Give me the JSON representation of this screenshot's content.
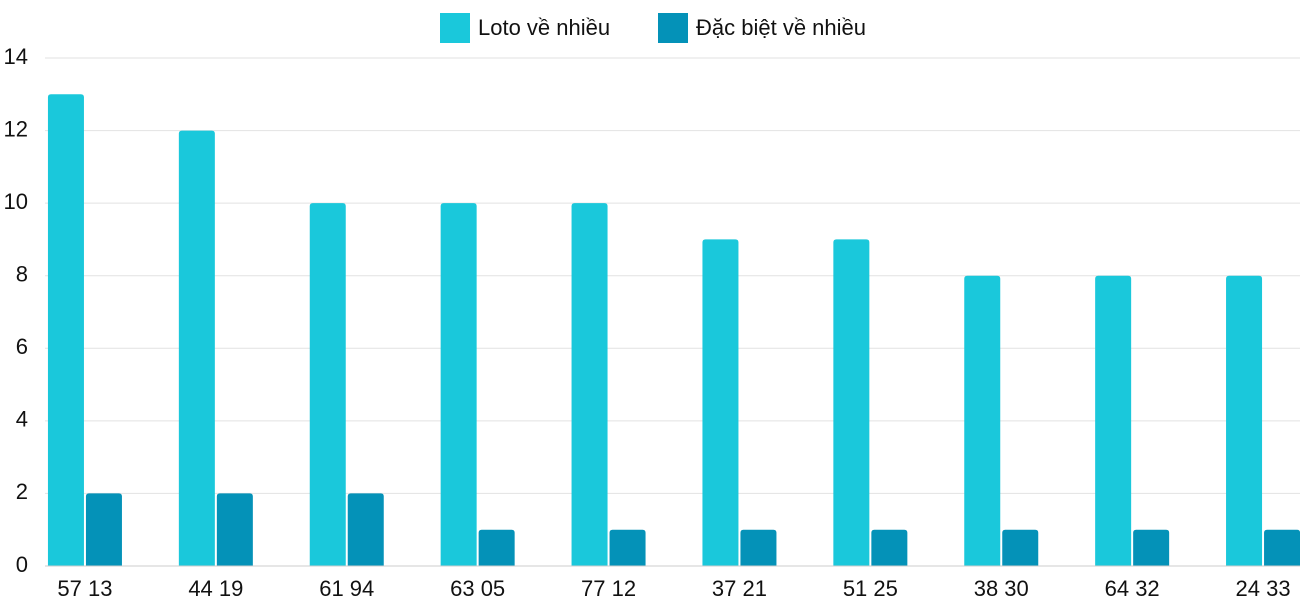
{
  "chart_data": {
    "type": "bar",
    "categories": [
      "57 13",
      "44 19",
      "61 94",
      "63 05",
      "77 12",
      "37 21",
      "51 25",
      "38 30",
      "64 32",
      "24 33"
    ],
    "series": [
      {
        "name": "Loto về nhiều",
        "color": "#1ac8db",
        "values": [
          13,
          12,
          10,
          10,
          10,
          9,
          9,
          8,
          8,
          8
        ]
      },
      {
        "name": "Đặc biệt về nhiều",
        "color": "#0492b8",
        "values": [
          2,
          2,
          2,
          1,
          1,
          1,
          1,
          1,
          1,
          1
        ]
      }
    ],
    "ylim": [
      0,
      14
    ],
    "yticks": [
      0,
      2,
      4,
      6,
      8,
      10,
      12,
      14
    ],
    "grid": true,
    "legend": "top"
  }
}
